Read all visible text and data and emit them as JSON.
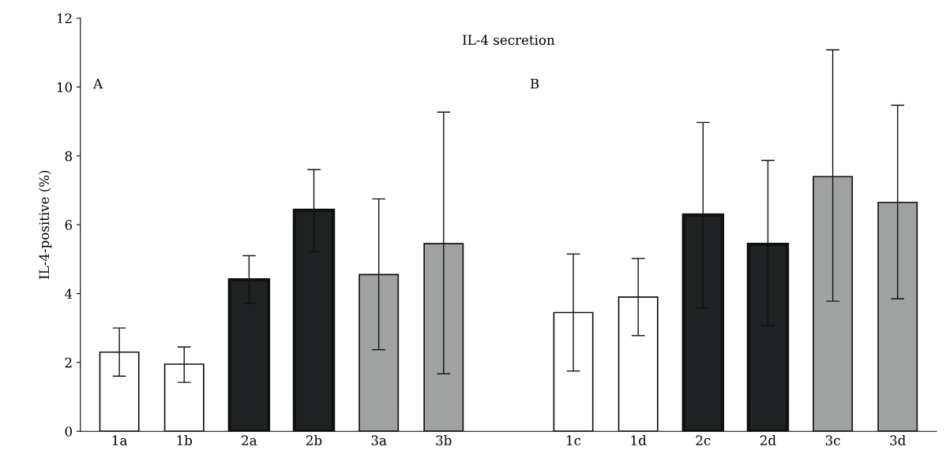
{
  "chart_data": {
    "type": "bar",
    "title": "IL-4 secretion",
    "ylabel": "IL-4-positive (%)",
    "annotations": [
      "A",
      "B"
    ],
    "categories": [
      "1a",
      "1b",
      "2a",
      "2b",
      "3a",
      "3b",
      null,
      "1c",
      "1d",
      "2c",
      "2d",
      "3c",
      "3d"
    ],
    "values": [
      2.3,
      1.95,
      4.4,
      6.42,
      4.55,
      5.45,
      null,
      3.45,
      3.9,
      6.28,
      5.43,
      7.4,
      6.65
    ],
    "errors": [
      [
        1.6,
        3.0
      ],
      [
        1.42,
        2.45
      ],
      [
        3.72,
        5.1
      ],
      [
        5.22,
        7.6
      ],
      [
        2.37,
        6.75
      ],
      [
        1.67,
        9.27
      ],
      null,
      [
        1.75,
        5.15
      ],
      [
        2.78,
        5.02
      ],
      [
        3.58,
        8.97
      ],
      [
        3.07,
        7.87
      ],
      [
        3.78,
        11.08
      ],
      [
        3.85,
        9.47
      ]
    ],
    "colors": [
      "#ffffff",
      "#ffffff",
      "#1e2222",
      "#1e2222",
      "#a0a2a2",
      "#a0a2a2",
      "#ffffff",
      "#ffffff",
      "#ffffff",
      "#1e2222",
      "#1e2222",
      "#a0a2a2",
      "#a0a2a2"
    ],
    "ylim": [
      0,
      12
    ],
    "yticks": [
      0,
      2,
      4,
      6,
      8,
      10,
      12
    ],
    "grid": false,
    "legend": false
  }
}
